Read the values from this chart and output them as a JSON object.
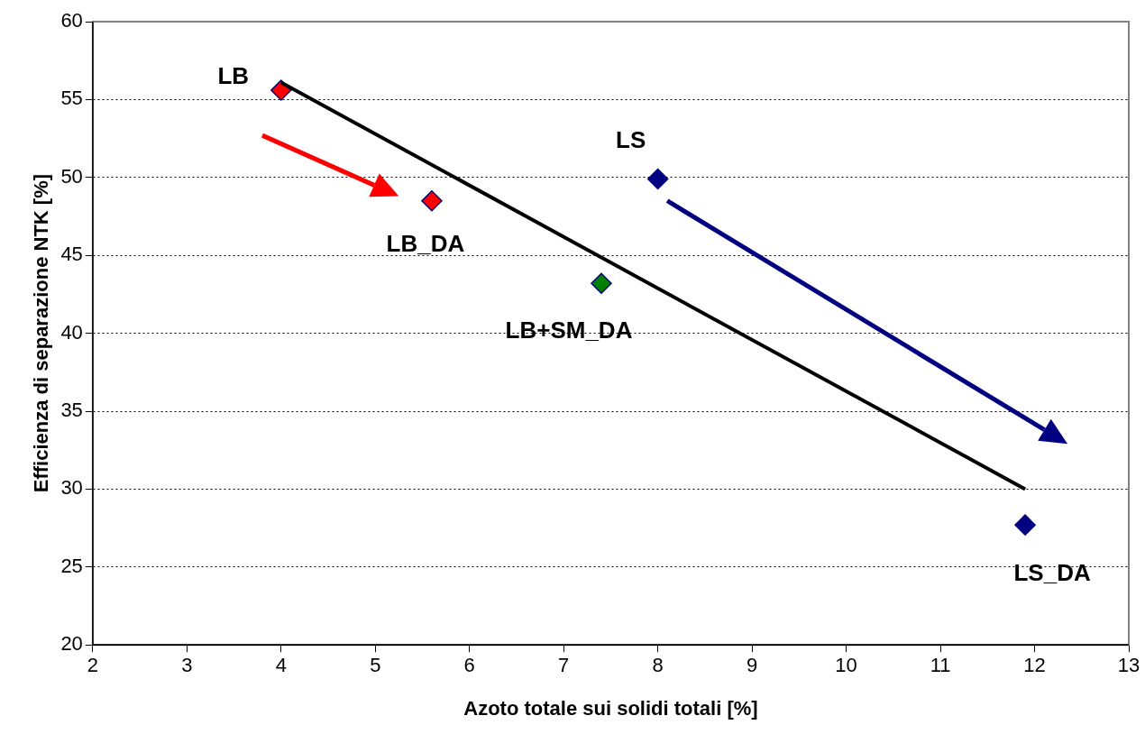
{
  "chart_data": {
    "type": "scatter",
    "xlabel": "Azoto totale sui solidi totali [%]",
    "ylabel": "Efficienza di separazione NTK [%]",
    "xlim": [
      2,
      13
    ],
    "xticks": [
      2,
      3,
      4,
      5,
      6,
      7,
      8,
      9,
      10,
      11,
      12,
      13
    ],
    "ylim": [
      20,
      60
    ],
    "yticks": [
      20,
      25,
      30,
      35,
      40,
      45,
      50,
      55,
      60
    ],
    "grid": "y",
    "legend": false,
    "marker": "diamond",
    "series": [
      {
        "x": [
          4,
          5.6,
          7.4,
          8,
          11.9
        ],
        "values": [
          55.6,
          48.5,
          43.2,
          49.9,
          27.7
        ],
        "colors": [
          "#ff0000",
          "#ff0000",
          "#008000",
          "#000080",
          "#000080"
        ]
      },
      {
        "type": "line",
        "x": [
          4,
          11.9
        ],
        "values": [
          56.1,
          30
        ],
        "color": "#000000",
        "marker": "none",
        "line_style": "solid"
      }
    ],
    "annotations": [
      {
        "text": "LB",
        "x": 4,
        "y": 55.6
      },
      {
        "text": "LB_DA",
        "x": 5.6,
        "y": 48.5
      },
      {
        "text": "LB+SM_DA",
        "x": 7.4,
        "y": 43.2
      },
      {
        "text": "LS",
        "x": 8,
        "y": 49.9
      },
      {
        "text": "LS_DA",
        "x": 11.9,
        "y": 27.7
      }
    ]
  }
}
